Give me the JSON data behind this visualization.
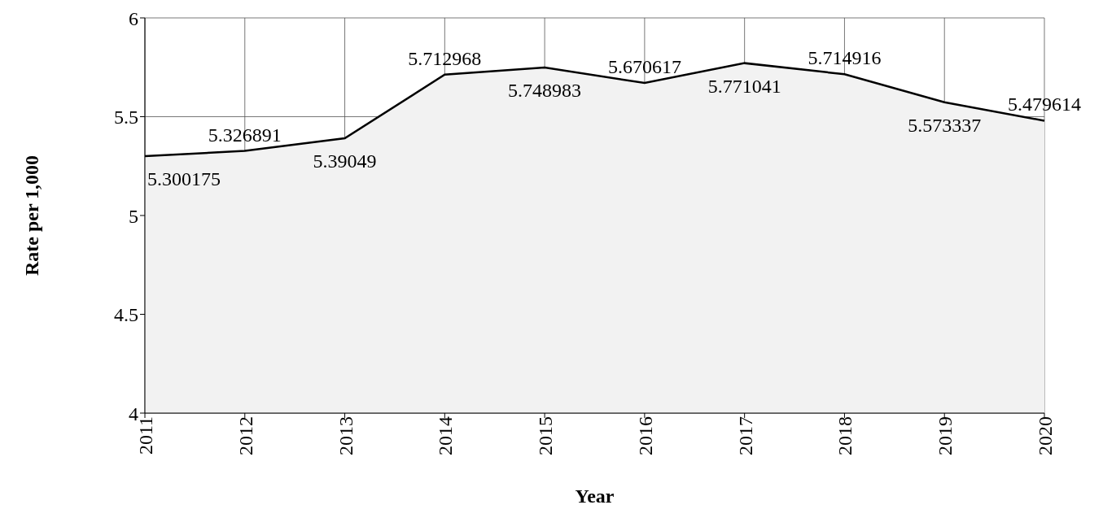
{
  "chart_data": {
    "type": "area",
    "xlabel": "Year",
    "ylabel": "Rate per 1,000",
    "categories": [
      "2011",
      "2012",
      "2013",
      "2014",
      "2015",
      "2016",
      "2017",
      "2018",
      "2019",
      "2020"
    ],
    "series": [
      {
        "color": "#000000",
        "values": [
          5.300175,
          5.326891,
          5.39049,
          5.712968,
          5.748983,
          5.670617,
          5.771041,
          5.714916,
          5.573337,
          5.479614
        ]
      }
    ],
    "ylim": [
      4,
      6
    ],
    "yticks": [
      4,
      4.5,
      5,
      5.5,
      6
    ],
    "grid": true,
    "data_labels": true
  }
}
